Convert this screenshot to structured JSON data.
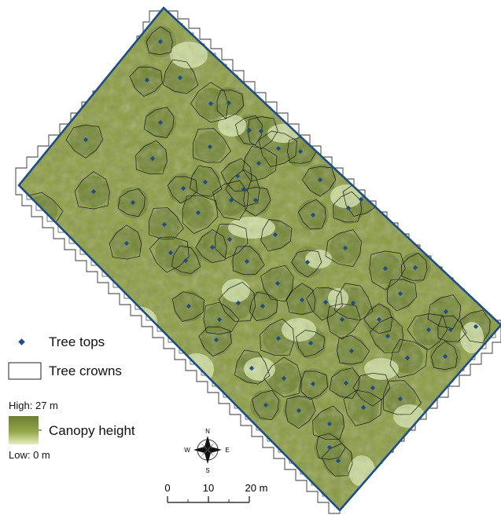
{
  "legend": {
    "tree_tops_label": "Tree tops",
    "tree_crowns_label": "Tree crowns",
    "high_label": "High: 27 m",
    "canopy_label": "Canopy height",
    "low_label": "Low: 0 m"
  },
  "colors": {
    "canopy_high": "#6b7f2e",
    "canopy_mid": "#8ea046",
    "canopy_low": "#dbe9b3",
    "tree_top": "#1f4e86",
    "plot_boundary": "#1f4e86",
    "crown_outline": "#111111"
  },
  "compass": {
    "n": "N",
    "s": "S",
    "e": "E",
    "w": "W"
  },
  "scale_bar": {
    "ticks": [
      "0",
      "10",
      "20 m"
    ]
  }
}
